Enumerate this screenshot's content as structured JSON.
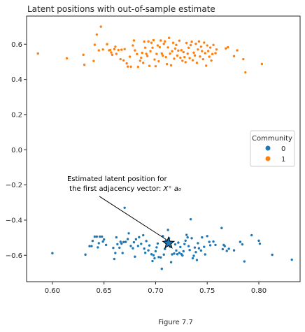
{
  "caption": "Figure 7.7",
  "chart_data": {
    "type": "scatter",
    "title": "Latent positions with out-of-sample estimate",
    "xlabel": "",
    "ylabel": "",
    "xlim": [
      0.575,
      0.84
    ],
    "ylim": [
      -0.75,
      0.76
    ],
    "xticks": [
      0.6,
      0.65,
      0.7,
      0.75,
      0.8
    ],
    "xtick_labels": [
      "0.60",
      "0.65",
      "0.70",
      "0.75",
      "0.80"
    ],
    "yticks": [
      -0.6,
      -0.4,
      -0.2,
      0.0,
      0.2,
      0.4,
      0.6
    ],
    "ytick_labels": [
      "−0.6",
      "−0.4",
      "−0.2",
      "0.0",
      "0.2",
      "0.4",
      "0.6"
    ],
    "grid": false,
    "legend": {
      "title": "Community",
      "placement": "center-right",
      "entries": [
        {
          "label": "0",
          "color": "#1f77b4"
        },
        {
          "label": "1",
          "color": "#ff7f0e"
        }
      ]
    },
    "series": [
      {
        "name": "0",
        "color": "#1f77b4",
        "points": [
          [
            0.6,
            -0.588
          ],
          [
            0.632,
            -0.596
          ],
          [
            0.636,
            -0.548
          ],
          [
            0.638,
            -0.548
          ],
          [
            0.639,
            -0.518
          ],
          [
            0.641,
            -0.494
          ],
          [
            0.643,
            -0.494
          ],
          [
            0.644,
            -0.555
          ],
          [
            0.645,
            -0.531
          ],
          [
            0.646,
            -0.494
          ],
          [
            0.648,
            -0.494
          ],
          [
            0.649,
            -0.522
          ],
          [
            0.65,
            -0.51
          ],
          [
            0.652,
            -0.541
          ],
          [
            0.659,
            -0.558
          ],
          [
            0.66,
            -0.621
          ],
          [
            0.661,
            -0.587
          ],
          [
            0.662,
            -0.498
          ],
          [
            0.663,
            -0.537
          ],
          [
            0.665,
            -0.557
          ],
          [
            0.666,
            -0.523
          ],
          [
            0.667,
            -0.534
          ],
          [
            0.668,
            -0.587
          ],
          [
            0.669,
            -0.525
          ],
          [
            0.67,
            -0.33
          ],
          [
            0.671,
            -0.524
          ],
          [
            0.673,
            -0.508
          ],
          [
            0.674,
            -0.475
          ],
          [
            0.676,
            -0.547
          ],
          [
            0.678,
            -0.56
          ],
          [
            0.679,
            -0.526
          ],
          [
            0.68,
            -0.608
          ],
          [
            0.681,
            -0.509
          ],
          [
            0.683,
            -0.547
          ],
          [
            0.684,
            -0.497
          ],
          [
            0.686,
            -0.535
          ],
          [
            0.688,
            -0.486
          ],
          [
            0.689,
            -0.562
          ],
          [
            0.69,
            -0.586
          ],
          [
            0.691,
            -0.519
          ],
          [
            0.693,
            -0.572
          ],
          [
            0.694,
            -0.544
          ],
          [
            0.696,
            -0.594
          ],
          [
            0.697,
            -0.633
          ],
          [
            0.698,
            -0.6
          ],
          [
            0.699,
            -0.617
          ],
          [
            0.7,
            -0.577
          ],
          [
            0.701,
            -0.555
          ],
          [
            0.702,
            -0.533
          ],
          [
            0.703,
            -0.61
          ],
          [
            0.705,
            -0.612
          ],
          [
            0.706,
            -0.677
          ],
          [
            0.707,
            -0.491
          ],
          [
            0.708,
            -0.596
          ],
          [
            0.709,
            -0.564
          ],
          [
            0.71,
            -0.517
          ],
          [
            0.711,
            -0.538
          ],
          [
            0.712,
            -0.456
          ],
          [
            0.713,
            -0.503
          ],
          [
            0.714,
            -0.551
          ],
          [
            0.715,
            -0.639
          ],
          [
            0.716,
            -0.595
          ],
          [
            0.718,
            -0.59
          ],
          [
            0.719,
            -0.538
          ],
          [
            0.72,
            -0.573
          ],
          [
            0.721,
            -0.594
          ],
          [
            0.722,
            -0.528
          ],
          [
            0.723,
            -0.586
          ],
          [
            0.724,
            -0.553
          ],
          [
            0.725,
            -0.594
          ],
          [
            0.726,
            -0.601
          ],
          [
            0.727,
            -0.577
          ],
          [
            0.728,
            -0.536
          ],
          [
            0.729,
            -0.517
          ],
          [
            0.73,
            -0.484
          ],
          [
            0.731,
            -0.498
          ],
          [
            0.732,
            -0.548
          ],
          [
            0.733,
            -0.57
          ],
          [
            0.734,
            -0.395
          ],
          [
            0.735,
            -0.503
          ],
          [
            0.736,
            -0.617
          ],
          [
            0.737,
            -0.603
          ],
          [
            0.738,
            -0.556
          ],
          [
            0.739,
            -0.582
          ],
          [
            0.74,
            -0.627
          ],
          [
            0.741,
            -0.531
          ],
          [
            0.742,
            -0.56
          ],
          [
            0.744,
            -0.573
          ],
          [
            0.745,
            -0.498
          ],
          [
            0.747,
            -0.552
          ],
          [
            0.748,
            -0.595
          ],
          [
            0.75,
            -0.491
          ],
          [
            0.752,
            -0.524
          ],
          [
            0.753,
            -0.543
          ],
          [
            0.756,
            -0.522
          ],
          [
            0.758,
            -0.541
          ],
          [
            0.764,
            -0.445
          ],
          [
            0.765,
            -0.565
          ],
          [
            0.766,
            -0.541
          ],
          [
            0.767,
            -0.548
          ],
          [
            0.769,
            -0.575
          ],
          [
            0.771,
            -0.563
          ],
          [
            0.776,
            -0.572
          ],
          [
            0.782,
            -0.524
          ],
          [
            0.784,
            -0.538
          ],
          [
            0.786,
            -0.635
          ],
          [
            0.793,
            -0.486
          ],
          [
            0.8,
            -0.517
          ],
          [
            0.801,
            -0.534
          ],
          [
            0.813,
            -0.597
          ],
          [
            0.832,
            -0.625
          ]
        ]
      },
      {
        "name": "1",
        "color": "#ff7f0e",
        "points": [
          [
            0.586,
            0.547
          ],
          [
            0.614,
            0.52
          ],
          [
            0.63,
            0.54
          ],
          [
            0.631,
            0.483
          ],
          [
            0.64,
            0.505
          ],
          [
            0.641,
            0.597
          ],
          [
            0.643,
            0.655
          ],
          [
            0.645,
            0.565
          ],
          [
            0.647,
            0.7
          ],
          [
            0.649,
            0.57
          ],
          [
            0.653,
            0.6
          ],
          [
            0.655,
            0.565
          ],
          [
            0.656,
            0.567
          ],
          [
            0.657,
            0.553
          ],
          [
            0.658,
            0.54
          ],
          [
            0.66,
            0.572
          ],
          [
            0.661,
            0.586
          ],
          [
            0.662,
            0.545
          ],
          [
            0.664,
            0.567
          ],
          [
            0.666,
            0.515
          ],
          [
            0.667,
            0.569
          ],
          [
            0.669,
            0.508
          ],
          [
            0.67,
            0.572
          ],
          [
            0.672,
            0.491
          ],
          [
            0.673,
            0.473
          ],
          [
            0.675,
            0.529
          ],
          [
            0.676,
            0.472
          ],
          [
            0.678,
            0.593
          ],
          [
            0.679,
            0.621
          ],
          [
            0.68,
            0.565
          ],
          [
            0.682,
            0.544
          ],
          [
            0.683,
            0.471
          ],
          [
            0.685,
            0.506
          ],
          [
            0.686,
            0.523
          ],
          [
            0.687,
            0.551
          ],
          [
            0.688,
            0.494
          ],
          [
            0.689,
            0.615
          ],
          [
            0.69,
            0.58
          ],
          [
            0.691,
            0.545
          ],
          [
            0.692,
            0.533
          ],
          [
            0.693,
            0.616
          ],
          [
            0.694,
            0.477
          ],
          [
            0.695,
            0.56
          ],
          [
            0.696,
            0.608
          ],
          [
            0.697,
            0.58
          ],
          [
            0.698,
            0.623
          ],
          [
            0.699,
            0.513
          ],
          [
            0.7,
            0.475
          ],
          [
            0.701,
            0.545
          ],
          [
            0.702,
            0.593
          ],
          [
            0.703,
            0.503
          ],
          [
            0.704,
            0.583
          ],
          [
            0.705,
            0.621
          ],
          [
            0.706,
            0.547
          ],
          [
            0.707,
            0.535
          ],
          [
            0.708,
            0.602
          ],
          [
            0.709,
            0.616
          ],
          [
            0.71,
            0.527
          ],
          [
            0.711,
            0.487
          ],
          [
            0.712,
            0.582
          ],
          [
            0.713,
            0.636
          ],
          [
            0.714,
            0.546
          ],
          [
            0.715,
            0.48
          ],
          [
            0.716,
            0.56
          ],
          [
            0.717,
            0.608
          ],
          [
            0.718,
            0.518
          ],
          [
            0.719,
            0.575
          ],
          [
            0.72,
            0.596
          ],
          [
            0.721,
            0.535
          ],
          [
            0.722,
            0.564
          ],
          [
            0.723,
            0.62
          ],
          [
            0.724,
            0.523
          ],
          [
            0.725,
            0.566
          ],
          [
            0.726,
            0.506
          ],
          [
            0.727,
            0.555
          ],
          [
            0.728,
            0.527
          ],
          [
            0.729,
            0.498
          ],
          [
            0.73,
            0.607
          ],
          [
            0.731,
            0.546
          ],
          [
            0.732,
            0.58
          ],
          [
            0.733,
            0.521
          ],
          [
            0.734,
            0.595
          ],
          [
            0.735,
            0.614
          ],
          [
            0.736,
            0.509
          ],
          [
            0.737,
            0.552
          ],
          [
            0.738,
            0.536
          ],
          [
            0.739,
            0.602
          ],
          [
            0.74,
            0.494
          ],
          [
            0.741,
            0.57
          ],
          [
            0.742,
            0.616
          ],
          [
            0.743,
            0.53
          ],
          [
            0.744,
            0.586
          ],
          [
            0.745,
            0.561
          ],
          [
            0.746,
            0.515
          ],
          [
            0.747,
            0.609
          ],
          [
            0.748,
            0.549
          ],
          [
            0.749,
            0.478
          ],
          [
            0.75,
            0.593
          ],
          [
            0.751,
            0.561
          ],
          [
            0.752,
            0.529
          ],
          [
            0.753,
            0.581
          ],
          [
            0.754,
            0.507
          ],
          [
            0.755,
            0.544
          ],
          [
            0.756,
            0.596
          ],
          [
            0.758,
            0.549
          ],
          [
            0.759,
            0.57
          ],
          [
            0.768,
            0.576
          ],
          [
            0.77,
            0.583
          ],
          [
            0.776,
            0.532
          ],
          [
            0.779,
            0.565
          ],
          [
            0.785,
            0.515
          ],
          [
            0.787,
            0.44
          ],
          [
            0.803,
            0.488
          ]
        ]
      }
    ],
    "estimate": {
      "point": [
        0.7125,
        -0.531
      ],
      "marker": "star",
      "label_line1": "Estimated latent position for",
      "label_line2_prefix": " the first adjacency vector: ",
      "label_math": "X⁺ a₀",
      "text_anchor": [
        0.614,
        -0.19
      ]
    }
  }
}
